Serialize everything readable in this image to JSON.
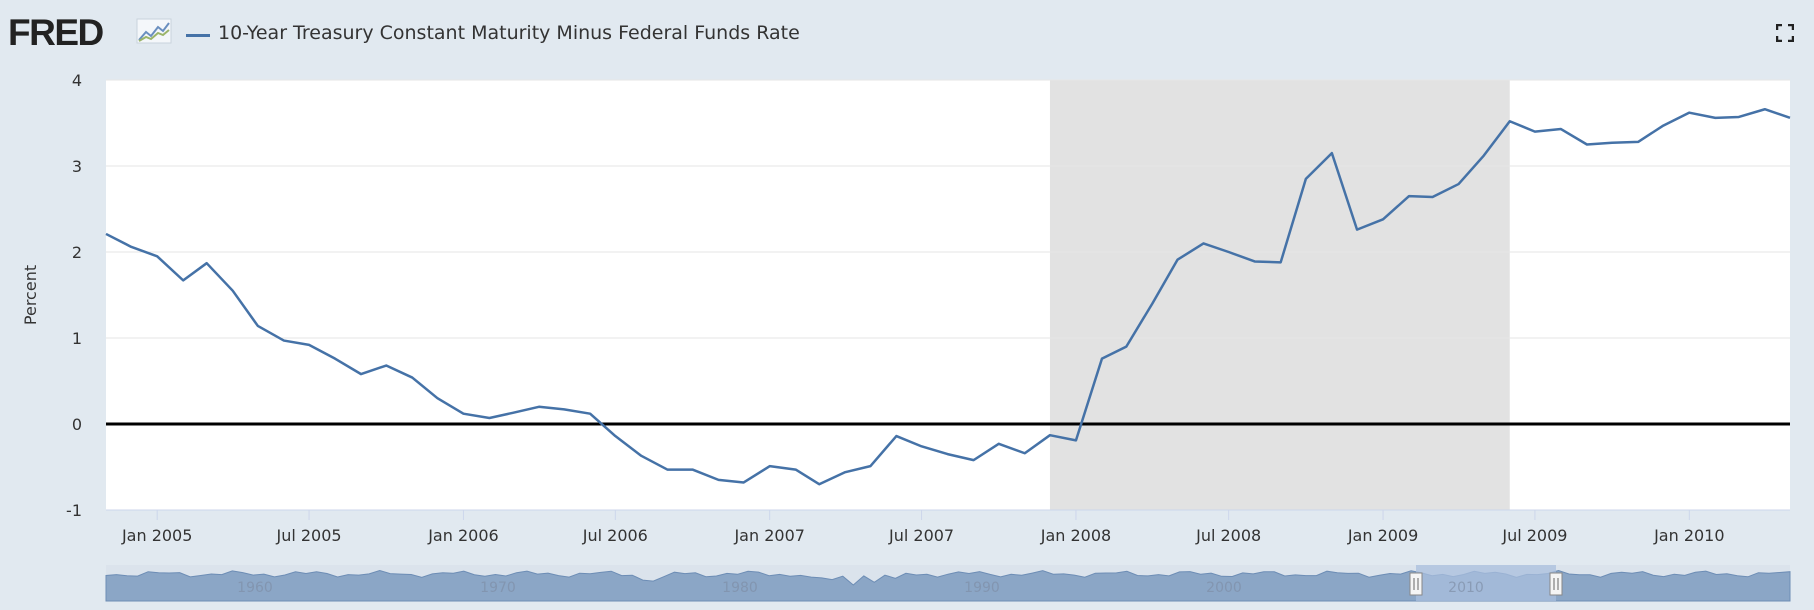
{
  "brand": {
    "logo_text": "FRED"
  },
  "icons": {
    "logo_chart": "fred-graph-icon",
    "fullscreen": "fullscreen-icon"
  },
  "colors": {
    "series": "#4572a7",
    "plot_bg": "#ffffff",
    "page_bg": "#e1e9f0",
    "recession": "#e2e2e2",
    "navigator_fill": "#8ba6c6",
    "navigator_window": "#a9bfdd"
  },
  "chart_data": {
    "type": "line",
    "title": "10-Year Treasury Constant Maturity Minus Federal Funds Rate",
    "ylabel": "Percent",
    "xlabel": "",
    "ylim": [
      -1,
      4
    ],
    "yticks": [
      -1,
      0,
      1,
      2,
      3,
      4
    ],
    "xlim": [
      "2004-11-01",
      "2010-05-01"
    ],
    "xticks": [
      {
        "date": "2005-01-01",
        "label": "Jan 2005"
      },
      {
        "date": "2005-07-01",
        "label": "Jul 2005"
      },
      {
        "date": "2006-01-01",
        "label": "Jan 2006"
      },
      {
        "date": "2006-07-01",
        "label": "Jul 2006"
      },
      {
        "date": "2007-01-01",
        "label": "Jan 2007"
      },
      {
        "date": "2007-07-01",
        "label": "Jul 2007"
      },
      {
        "date": "2008-01-01",
        "label": "Jan 2008"
      },
      {
        "date": "2008-07-01",
        "label": "Jul 2008"
      },
      {
        "date": "2009-01-01",
        "label": "Jan 2009"
      },
      {
        "date": "2009-07-01",
        "label": "Jul 2009"
      },
      {
        "date": "2010-01-01",
        "label": "Jan 2010"
      }
    ],
    "recession_shading": [
      {
        "start": "2007-12-01",
        "end": "2009-06-01"
      }
    ],
    "reference_line": 0,
    "series": [
      {
        "name": "10-Year Treasury Constant Maturity Minus Federal Funds Rate",
        "x": [
          "2004-11-01",
          "2004-12-01",
          "2005-01-01",
          "2005-02-01",
          "2005-03-01",
          "2005-04-01",
          "2005-05-01",
          "2005-06-01",
          "2005-07-01",
          "2005-08-01",
          "2005-09-01",
          "2005-10-01",
          "2005-11-01",
          "2005-12-01",
          "2006-01-01",
          "2006-02-01",
          "2006-03-01",
          "2006-04-01",
          "2006-05-01",
          "2006-06-01",
          "2006-07-01",
          "2006-08-01",
          "2006-09-01",
          "2006-10-01",
          "2006-11-01",
          "2006-12-01",
          "2007-01-01",
          "2007-02-01",
          "2007-03-01",
          "2007-04-01",
          "2007-05-01",
          "2007-06-01",
          "2007-07-01",
          "2007-08-01",
          "2007-09-01",
          "2007-10-01",
          "2007-11-01",
          "2007-12-01",
          "2008-01-01",
          "2008-02-01",
          "2008-03-01",
          "2008-04-01",
          "2008-05-01",
          "2008-06-01",
          "2008-07-01",
          "2008-08-01",
          "2008-09-01",
          "2008-10-01",
          "2008-11-01",
          "2008-12-01",
          "2009-01-01",
          "2009-02-01",
          "2009-03-01",
          "2009-04-01",
          "2009-05-01",
          "2009-06-01",
          "2009-07-01",
          "2009-08-01",
          "2009-09-01",
          "2009-10-01",
          "2009-11-01",
          "2009-12-01",
          "2010-01-01",
          "2010-02-01",
          "2010-03-01",
          "2010-04-01",
          "2010-05-01"
        ],
        "values": [
          2.21,
          2.06,
          1.95,
          1.67,
          1.87,
          1.55,
          1.14,
          0.97,
          0.92,
          0.76,
          0.58,
          0.68,
          0.54,
          0.3,
          0.12,
          0.07,
          0.13,
          0.2,
          0.17,
          0.12,
          -0.14,
          -0.37,
          -0.53,
          -0.53,
          -0.65,
          -0.68,
          -0.49,
          -0.53,
          -0.7,
          -0.56,
          -0.49,
          -0.14,
          -0.26,
          -0.35,
          -0.42,
          -0.23,
          -0.34,
          -0.13,
          -0.19,
          0.76,
          0.9,
          1.4,
          1.91,
          2.1,
          2.0,
          1.89,
          1.88,
          2.85,
          3.15,
          2.26,
          2.38,
          2.65,
          2.64,
          2.79,
          3.12,
          3.52,
          3.4,
          3.43,
          3.25,
          3.27,
          3.28,
          3.47,
          3.62,
          3.56,
          3.57,
          3.66,
          3.56
        ]
      }
    ],
    "navigator": {
      "labels": [
        "1960",
        "1970",
        "1980",
        "1990",
        "2000",
        "2010"
      ]
    }
  }
}
